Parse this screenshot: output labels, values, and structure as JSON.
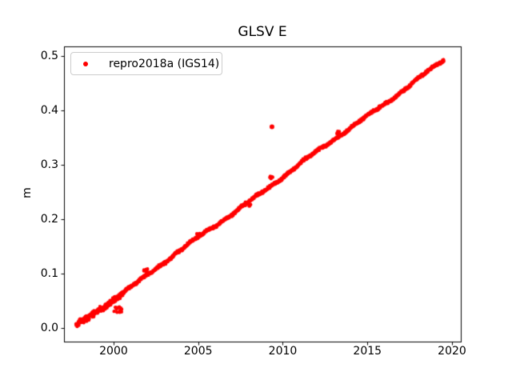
{
  "figure": {
    "background": "#ffffff"
  },
  "chart_data": {
    "type": "scatter",
    "title": "GLSV E",
    "xlabel": "",
    "ylabel": "m",
    "xlim": [
      1997.07,
      2020.52
    ],
    "ylim": [
      -0.025,
      0.5176
    ],
    "grid": false,
    "xticks": [
      2000,
      2005,
      2010,
      2015,
      2020
    ],
    "xtick_labels": [
      "2000",
      "2005",
      "2010",
      "2015",
      "2020"
    ],
    "yticks": [
      0.0,
      0.1,
      0.2,
      0.3,
      0.4,
      0.5
    ],
    "ytick_labels": [
      "0.0",
      "0.1",
      "0.2",
      "0.3",
      "0.4",
      "0.5"
    ],
    "legend": {
      "position": "upper-left",
      "entries": [
        {
          "label": "repro2018a (IGS14)",
          "marker": "dot",
          "color": "#ff0000"
        }
      ]
    },
    "series": [
      {
        "name": "repro2018a (IGS14)",
        "color": "#ff0000",
        "marker_radius_px": 2.2,
        "trend": {
          "x_start": 1997.78,
          "x_end": 2019.52,
          "y_start": 0.003,
          "y_end": 0.492,
          "points_per_year": 120
        },
        "slope_m_per_yr": 0.0225,
        "wiggles": [
          {
            "period": 3.4,
            "amp": 0.0017,
            "phase": 1.2
          },
          {
            "period": 0.95,
            "amp": 0.001,
            "phase": 0.4
          },
          {
            "period": 7.8,
            "amp": 0.0013,
            "phase": 2.6
          }
        ],
        "noise_amp": 0.0016,
        "early_noise": {
          "until": 2000.6,
          "factor": 2.2
        },
        "clusters": [
          {
            "x": 1998.15,
            "y": 0.016,
            "n": 6,
            "sx": 0.1,
            "sy": 0.004
          },
          {
            "x": 2000.25,
            "y": 0.034,
            "n": 14,
            "sx": 0.28,
            "sy": 0.005
          },
          {
            "x": 2001.9,
            "y": 0.107,
            "n": 10,
            "sx": 0.13,
            "sy": 0.004
          },
          {
            "x": 2005.0,
            "y": 0.171,
            "n": 9,
            "sx": 0.1,
            "sy": 0.004
          },
          {
            "x": 2007.95,
            "y": 0.227,
            "n": 10,
            "sx": 0.16,
            "sy": 0.005
          },
          {
            "x": 2009.32,
            "y": 0.276,
            "n": 7,
            "sx": 0.09,
            "sy": 0.003
          },
          {
            "x": 2013.25,
            "y": 0.36,
            "n": 7,
            "sx": 0.09,
            "sy": 0.003
          }
        ],
        "outliers": [
          {
            "x": 2009.36,
            "y": 0.37
          }
        ]
      }
    ]
  }
}
